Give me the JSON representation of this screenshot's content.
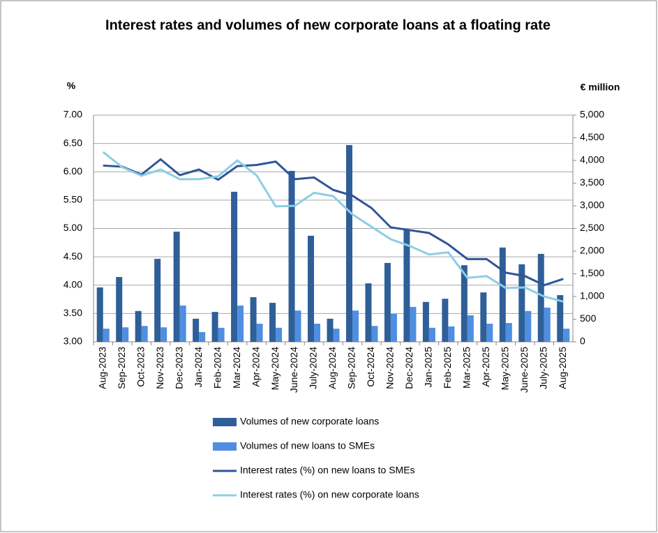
{
  "chart_data": {
    "type": "bar-line",
    "title": "Interest rates and volumes of new corporate loans at a  floating rate",
    "y_label": "%",
    "y2_label": "€ million",
    "categories": [
      "Aug-2023",
      "Sep-2023",
      "Oct-2023",
      "Nov-2023",
      "Dec-2023",
      "Jan-2024",
      "Feb-2024",
      "Mar-2024",
      "Apr-2024",
      "May-2024",
      "June-2024",
      "July-2024",
      "Aug-2024",
      "Sep-2024",
      "Oct-2024",
      "Nov-2024",
      "Dec-2024",
      "Jan-2025",
      "Feb-2025",
      "Mar-2025",
      "Apr-2025",
      "May-2025",
      "June-2025",
      "July-2025",
      "Aug-2025"
    ],
    "series": [
      {
        "name": "Volumes of new corporate loans",
        "type": "bar",
        "axis": "y2",
        "color": "#2f5f98",
        "values": [
          1200,
          1430,
          680,
          1830,
          2430,
          510,
          660,
          3310,
          985,
          860,
          3770,
          2340,
          510,
          4340,
          1290,
          1740,
          2480,
          880,
          950,
          1690,
          1090,
          2080,
          1710,
          1940,
          1030
        ]
      },
      {
        "name": "Volumes of new loans to SMEs",
        "type": "bar",
        "axis": "y2",
        "color": "#4f8ee0",
        "values": [
          290,
          320,
          350,
          320,
          800,
          215,
          310,
          800,
          400,
          310,
          690,
          400,
          290,
          690,
          350,
          615,
          770,
          310,
          340,
          585,
          400,
          415,
          680,
          755,
          290
        ]
      },
      {
        "name": "Interest rates (%) on new loans to SMEs",
        "type": "line",
        "color": "#2f5597",
        "values": [
          6.11,
          6.09,
          5.95,
          6.22,
          5.94,
          6.04,
          5.86,
          6.1,
          6.12,
          6.18,
          5.87,
          5.9,
          5.68,
          5.58,
          5.36,
          5.02,
          4.97,
          4.92,
          4.72,
          4.46,
          4.46,
          4.22,
          4.16,
          4.0,
          4.11
        ]
      },
      {
        "name": "Interest rates (%) on new corporate loans",
        "type": "line",
        "color": "#8ccde6",
        "values": [
          6.35,
          6.08,
          5.93,
          6.04,
          5.87,
          5.87,
          5.92,
          6.2,
          5.94,
          5.39,
          5.4,
          5.63,
          5.57,
          5.25,
          5.03,
          4.81,
          4.69,
          4.54,
          4.58,
          4.13,
          4.16,
          3.95,
          3.96,
          3.8,
          3.71
        ]
      }
    ],
    "ylim": [
      3,
      7
    ],
    "yticks": [
      {
        "value": 3,
        "label": "3.00"
      },
      {
        "value": 3.5,
        "label": "3.50"
      },
      {
        "value": 4,
        "label": "4.00"
      },
      {
        "value": 4.5,
        "label": "4.50"
      },
      {
        "value": 5,
        "label": "5.00"
      },
      {
        "value": 5.5,
        "label": "5.50"
      },
      {
        "value": 6,
        "label": "6.00"
      },
      {
        "value": 6.5,
        "label": "6.50"
      },
      {
        "value": 7,
        "label": "7.00"
      }
    ],
    "y2lim": [
      0,
      5000
    ],
    "y2ticks": [
      0,
      500,
      {
        "value": 1000,
        "label": "1,000"
      },
      {
        "value": 1500,
        "label": "1,500"
      },
      {
        "value": 2000,
        "label": "2,000"
      },
      {
        "value": 2500,
        "label": "2,500"
      },
      {
        "value": 3000,
        "label": "3,000"
      },
      {
        "value": 3500,
        "label": "3,500"
      },
      {
        "value": 4000,
        "label": "4,000"
      },
      {
        "value": 4500,
        "label": "4,500"
      },
      {
        "value": 5000,
        "label": "5,000"
      }
    ],
    "grid": true,
    "legend": "bottom"
  }
}
